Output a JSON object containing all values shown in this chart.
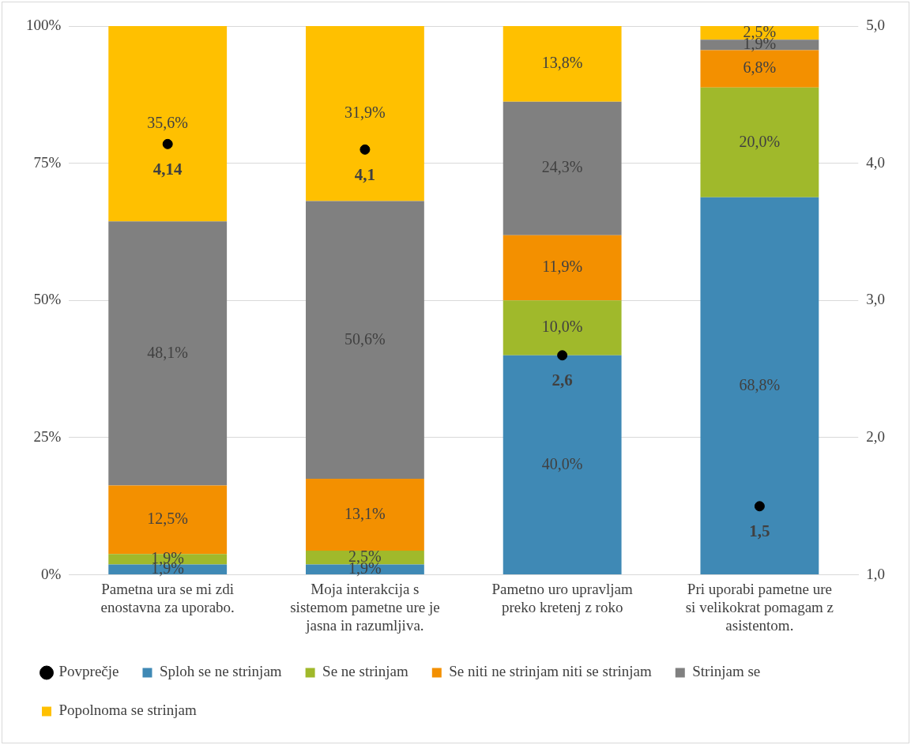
{
  "chart_data": {
    "type": "bar",
    "stacked": true,
    "categories": [
      "Pametna ura se mi zdi enostavna za uporabo.",
      "Moja interakcija s sistemom pametne ure je jasna in razumljiva.",
      "Pametno uro upravljam preko kretenj z roko",
      "Pri uporabi pametne ure si velikokrat pomagam z asistentom."
    ],
    "series": [
      {
        "name": "Sploh se ne strinjam",
        "color": "#3f89b5",
        "values": [
          1.9,
          1.9,
          40.0,
          68.8
        ],
        "value_labels": [
          "1,9%",
          "1,9%",
          "40,0%",
          "68,8%"
        ]
      },
      {
        "name": "Se ne strinjam",
        "color": "#a0b92b",
        "values": [
          1.9,
          2.5,
          10.0,
          20.0
        ],
        "value_labels": [
          "1,9%",
          "2,5%",
          "10,0%",
          "20,0%"
        ]
      },
      {
        "name": "Se niti ne strinjam niti se strinjam",
        "color": "#f39000",
        "values": [
          12.5,
          13.1,
          11.9,
          6.8
        ],
        "value_labels": [
          "12,5%",
          "13,1%",
          "11,9%",
          "6,8%"
        ]
      },
      {
        "name": "Strinjam se",
        "color": "#808080",
        "values": [
          48.1,
          50.6,
          24.3,
          1.9
        ],
        "value_labels": [
          "48,1%",
          "50,6%",
          "24,3%",
          "1,9%"
        ]
      },
      {
        "name": "Popolnoma se strinjam",
        "color": "#ffc000",
        "values": [
          35.6,
          31.9,
          13.8,
          2.5
        ],
        "value_labels": [
          "35,6%",
          "31,9%",
          "13,8%",
          "2,5%"
        ]
      },
      {
        "name": "Povprečje",
        "type": "scatter",
        "axis": "y2",
        "marker": "circle",
        "color": "#000000",
        "x": [
          "Pametna ura se mi zdi enostavna za uporabo.",
          "Moja interakcija s sistemom pametne ure je jasna in razumljiva.",
          "Pametno uro upravljam preko kretenj z roko",
          "Pri uporabi pametne ure si velikokrat pomagam z asistentom."
        ],
        "values": [
          4.14,
          4.1,
          2.6,
          1.5
        ],
        "value_labels": [
          "4,14",
          "4,1",
          "2,6",
          "1,5"
        ]
      }
    ],
    "ylim": [
      0,
      100
    ],
    "yticks": [
      {
        "value": 0,
        "label": "0%"
      },
      {
        "value": 25,
        "label": "25%"
      },
      {
        "value": 50,
        "label": "50%"
      },
      {
        "value": 75,
        "label": "75%"
      },
      {
        "value": 100,
        "label": "100%"
      }
    ],
    "y2lim": [
      1,
      5
    ],
    "y2ticks": [
      {
        "value": 1,
        "label": "1,0"
      },
      {
        "value": 2,
        "label": "2,0"
      },
      {
        "value": 3,
        "label": "3,0"
      },
      {
        "value": 4,
        "label": "4,0"
      },
      {
        "value": 5,
        "label": "5,0"
      }
    ],
    "grid": "y",
    "legend": "bottom"
  }
}
